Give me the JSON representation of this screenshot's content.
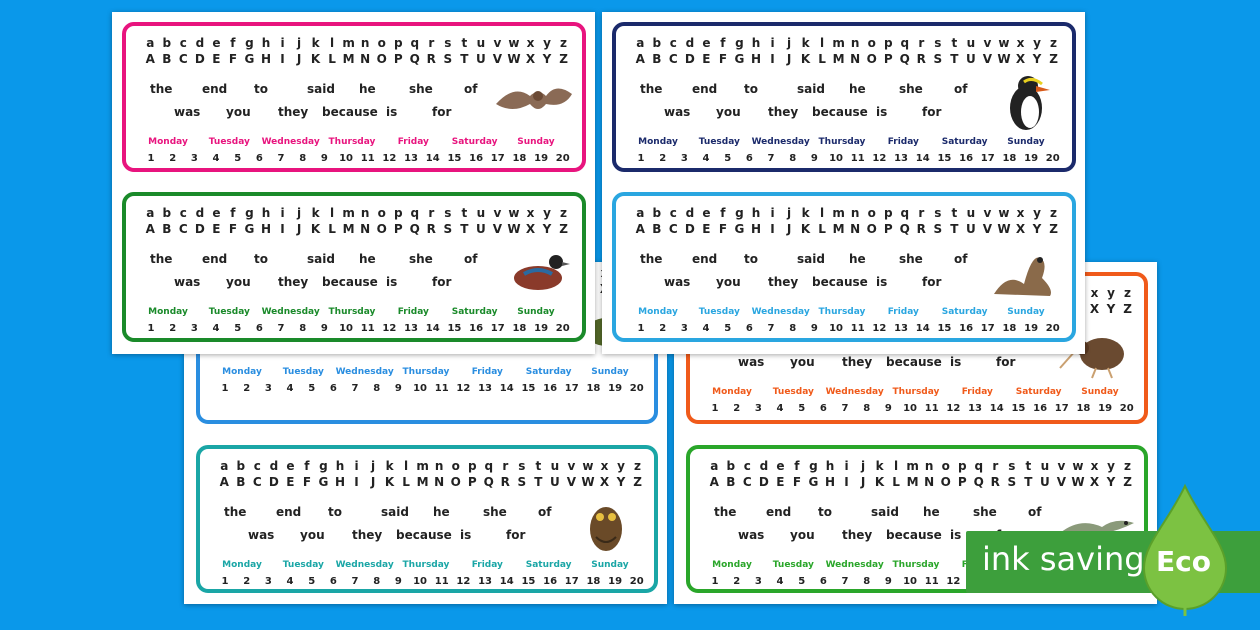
{
  "letters_lower": [
    "a",
    "b",
    "c",
    "d",
    "e",
    "f",
    "g",
    "h",
    "i",
    "j",
    "k",
    "l",
    "m",
    "n",
    "o",
    "p",
    "q",
    "r",
    "s",
    "t",
    "u",
    "v",
    "w",
    "x",
    "y",
    "z"
  ],
  "letters_upper": [
    "A",
    "B",
    "C",
    "D",
    "E",
    "F",
    "G",
    "H",
    "I",
    "J",
    "K",
    "L",
    "M",
    "N",
    "O",
    "P",
    "Q",
    "R",
    "S",
    "T",
    "U",
    "V",
    "W",
    "X",
    "Y",
    "Z"
  ],
  "words_row1": [
    "the",
    "end",
    "to",
    "said",
    "he",
    "she",
    "of"
  ],
  "words_row2": [
    "was",
    "you",
    "they",
    "because",
    "is",
    "for"
  ],
  "days": [
    "Monday",
    "Tuesday",
    "Wednesday",
    "Thursday",
    "Friday",
    "Saturday",
    "Sunday"
  ],
  "numbers": [
    "1",
    "2",
    "3",
    "4",
    "5",
    "6",
    "7",
    "8",
    "9",
    "10",
    "11",
    "12",
    "13",
    "14",
    "15",
    "16",
    "17",
    "18",
    "19",
    "20"
  ],
  "cards": [
    {
      "id": "bat",
      "color": "#e8147e",
      "animal": "bat-icon"
    },
    {
      "id": "penguin",
      "color": "#1b2a6b",
      "animal": "penguin-icon"
    },
    {
      "id": "duck",
      "color": "#1a8a2a",
      "animal": "duck-icon"
    },
    {
      "id": "sealion",
      "color": "#2aa6e0",
      "animal": "sea-lion-icon"
    },
    {
      "id": "blue-back",
      "color": "#2a8ee0",
      "animal": "bird-icon"
    },
    {
      "id": "kiwi",
      "color": "#f05a1a",
      "animal": "kiwi-icon"
    },
    {
      "id": "owl",
      "color": "#1aa6a6",
      "animal": "owl-icon"
    },
    {
      "id": "lizard",
      "color": "#2aa62a",
      "animal": "lizard-icon"
    }
  ],
  "badge": {
    "label": "ink saving",
    "eco": "Eco",
    "color": "#3d9f3c"
  }
}
